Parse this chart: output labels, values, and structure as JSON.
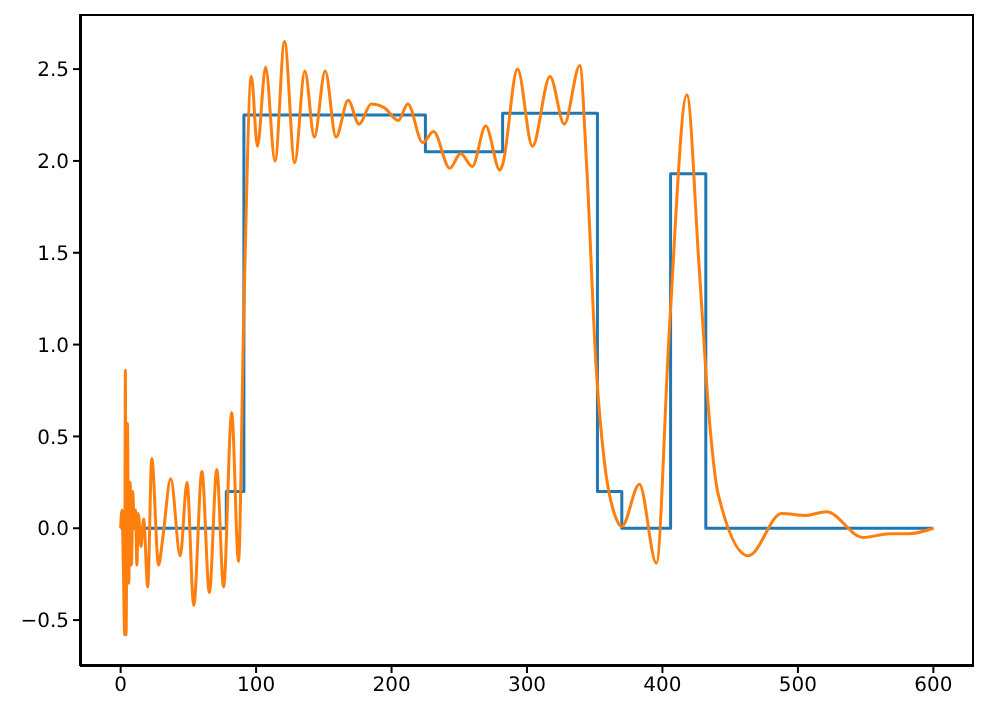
{
  "chart_data": {
    "type": "line",
    "xlim": [
      -30,
      630
    ],
    "ylim": [
      -0.75,
      2.8
    ],
    "xticks": [
      0,
      100,
      200,
      300,
      400,
      500,
      600
    ],
    "yticks": [
      {
        "value": -0.5,
        "label": "−0.5"
      },
      {
        "value": 0,
        "label": "0.0"
      },
      {
        "value": 0.5,
        "label": "0.5"
      },
      {
        "value": 1,
        "label": "1.0"
      },
      {
        "value": 1.5,
        "label": "1.5"
      },
      {
        "value": 2,
        "label": "2.0"
      },
      {
        "value": 2.5,
        "label": "2.5"
      }
    ],
    "marker": "none",
    "line_style": "solid",
    "series": [
      {
        "type": "step",
        "color": "#1f77b4",
        "x": [
          0,
          78,
          91,
          225,
          282,
          352,
          370,
          406,
          432,
          600
        ],
        "values": [
          0,
          0.2,
          2.25,
          2.05,
          2.26,
          0.2,
          0,
          1.93,
          0,
          0
        ]
      },
      {
        "color": "#ff7f0e",
        "x": [
          0,
          1,
          2,
          3,
          3.5,
          4,
          5,
          6,
          7,
          8,
          9,
          10,
          11,
          12,
          13,
          15,
          17,
          20,
          23,
          28,
          31,
          37,
          44,
          49,
          54,
          60,
          65.5,
          71,
          76,
          82,
          87,
          91,
          96.5,
          101,
          107,
          114,
          121,
          128.5,
          136,
          143,
          151,
          159,
          168,
          176,
          185,
          194.6,
          205,
          212,
          223,
          231,
          243,
          251,
          259.6,
          269.5,
          280,
          282,
          293,
          304,
          317,
          327.5,
          339,
          344,
          351,
          357,
          366,
          370,
          383,
          395.5,
          405,
          418,
          427,
          435,
          441,
          463.4,
          488,
          506,
          521,
          548,
          568,
          582,
          600
        ],
        "values": [
          0,
          0.1,
          -0.2,
          -0.58,
          0.86,
          -0.58,
          0.57,
          -0.3,
          0.25,
          -0.2,
          0.2,
          0,
          0.1,
          -0.2,
          0.08,
          -0.1,
          0.05,
          -0.32,
          0.38,
          -0.2,
          -0.06,
          0.27,
          -0.15,
          0.25,
          -0.42,
          0.31,
          -0.35,
          0.32,
          -0.32,
          0.63,
          -0.18,
          1.2,
          2.46,
          2.08,
          2.51,
          2.0,
          2.65,
          1.99,
          2.49,
          2.13,
          2.49,
          2.13,
          2.33,
          2.2,
          2.31,
          2.29,
          2.22,
          2.31,
          2.1,
          2.16,
          1.96,
          2.04,
          1.97,
          2.19,
          1.95,
          1.98,
          2.5,
          2.08,
          2.46,
          2.2,
          2.52,
          1.98,
          0.88,
          0.37,
          0.05,
          0.01,
          0.24,
          -0.19,
          1.07,
          2.36,
          1.43,
          0.56,
          0.19,
          -0.15,
          0.08,
          0.07,
          0.09,
          -0.05,
          -0.03,
          -0.03,
          0
        ]
      }
    ]
  }
}
